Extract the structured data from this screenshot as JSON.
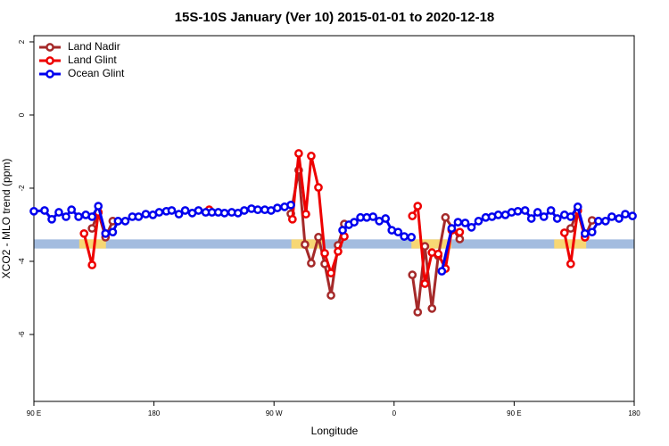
{
  "chart_data": {
    "type": "line",
    "title": "15S-10S January (Ver 10)   2015-01-01 to 2020-12-18",
    "x_label": "Longitude",
    "y_label": "XCO2 - MLO trend (ppm)",
    "xlim": [
      90,
      540
    ],
    "ylim": [
      -7.83,
      2.17
    ],
    "xticks": [
      {
        "value": 90,
        "label": "90 E"
      },
      180,
      {
        "value": 270,
        "label": "90 W"
      },
      {
        "value": 360,
        "label": "0"
      },
      {
        "value": 450,
        "label": "90 E"
      },
      {
        "value": 540,
        "label": "180"
      }
    ],
    "yticks": [
      2,
      0,
      -2,
      -4,
      -6
    ],
    "legend": "top-left",
    "surface_band": {
      "ylim": [
        -3.65,
        -3.4
      ],
      "ocean_color": "#a3bcdf",
      "land_color": "#f7d774",
      "land_ranges": [
        [
          124,
          144
        ],
        [
          283,
          306
        ],
        [
          373,
          403
        ],
        [
          480,
          504
        ]
      ]
    },
    "series": [
      {
        "name": "Land Nadir",
        "color": "#a52a2a",
        "x": [
          133.6,
          138.3,
          143.7,
          149.1,
          null,
          282.6,
          288.5,
          293.2,
          297.9,
          303.3,
          308.0,
          312.7,
          318.0,
          322.7,
          null,
          373.7,
          377.7,
          383.1,
          388.4,
          393.1,
          398.5,
          409.2,
          null,
          492.4,
          497.7,
          503.1,
          508.4
        ],
        "values": [
          -3.1,
          -2.66,
          -3.34,
          -2.9,
          null,
          -2.7,
          -1.51,
          -3.54,
          -4.05,
          -3.34,
          -4.07,
          -4.93,
          -3.56,
          -2.98,
          null,
          -4.37,
          -5.39,
          -3.59,
          -5.29,
          -3.85,
          -2.8,
          -3.39,
          null,
          -3.1,
          -2.61,
          -3.34,
          -2.88
        ]
      },
      {
        "name": "Land Glint",
        "color": "#ee0000",
        "x": [
          127.6,
          133.6,
          138.3,
          143.7,
          null,
          221.4,
          null,
          283.8,
          288.5,
          293.9,
          297.9,
          303.3,
          308.0,
          312.7,
          318.0,
          322.7,
          null,
          373.7,
          377.7,
          383.1,
          388.4,
          393.1,
          398.5,
          403.2,
          409.2,
          null,
          487.7,
          492.4,
          497.7,
          503.1
        ],
        "values": [
          -3.24,
          -4.1,
          -2.66,
          -3.24,
          null,
          -2.59,
          null,
          -2.85,
          -1.05,
          -2.71,
          -1.12,
          -1.98,
          -3.78,
          -4.32,
          -3.73,
          -3.32,
          null,
          -2.76,
          -2.49,
          -4.61,
          -3.76,
          -3.8,
          -4.2,
          -3.15,
          -3.2,
          null,
          -3.22,
          -4.07,
          -2.61,
          -3.34
        ]
      },
      {
        "name": "Ocean Glint",
        "color": "#0000ee",
        "x": [
          90,
          98.0,
          103.4,
          108.7,
          114.1,
          118.2,
          123.5,
          128.9,
          133.6,
          138.3,
          143.7,
          149.1,
          153.1,
          158.5,
          163.8,
          168.5,
          173.9,
          179.2,
          183.9,
          189.3,
          193.3,
          198.7,
          203.4,
          208.7,
          213.4,
          218.8,
          223.5,
          228.2,
          232.9,
          238.3,
          243.0,
          247.7,
          253.1,
          257.8,
          263.1,
          267.8,
          272.5,
          277.9,
          282.6,
          null,
          321.4,
          326.1,
          330.1,
          334.8,
          339.5,
          344.2,
          348.9,
          353.6,
          358.3,
          363.0,
          367.6,
          373.0,
          null,
          395.8,
          403.2,
          407.9,
          413.3,
          418.0,
          423.3,
          428.7,
          433.4,
          438.1,
          443.4,
          448.1,
          452.8,
          458.2,
          462.9,
          467.6,
          472.3,
          477.6,
          482.3,
          487.7,
          492.4,
          497.7,
          503.1,
          508.4,
          513.2,
          518.5,
          523.2,
          528.6,
          533.3,
          538.7
        ],
        "values": [
          -2.63,
          -2.61,
          -2.85,
          -2.66,
          -2.78,
          -2.59,
          -2.78,
          -2.73,
          -2.78,
          -2.49,
          -3.24,
          -3.2,
          -2.9,
          -2.9,
          -2.78,
          -2.78,
          -2.71,
          -2.73,
          -2.66,
          -2.63,
          -2.61,
          -2.71,
          -2.61,
          -2.68,
          -2.61,
          -2.66,
          -2.66,
          -2.66,
          -2.68,
          -2.66,
          -2.68,
          -2.61,
          -2.56,
          -2.59,
          -2.59,
          -2.61,
          -2.54,
          -2.51,
          -2.46,
          null,
          -3.15,
          -3.0,
          -2.93,
          -2.8,
          -2.8,
          -2.78,
          -2.9,
          -2.83,
          -3.15,
          -3.2,
          -3.32,
          -3.34,
          null,
          -4.27,
          -3.1,
          -2.93,
          -2.95,
          -3.07,
          -2.9,
          -2.8,
          -2.78,
          -2.73,
          -2.73,
          -2.66,
          -2.63,
          -2.61,
          -2.83,
          -2.66,
          -2.78,
          -2.61,
          -2.83,
          -2.73,
          -2.78,
          -2.51,
          -3.24,
          -3.2,
          -2.9,
          -2.9,
          -2.78,
          -2.83,
          -2.71,
          -2.76
        ]
      }
    ]
  }
}
